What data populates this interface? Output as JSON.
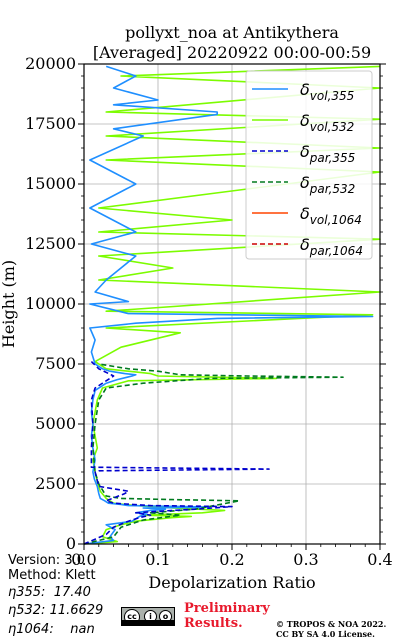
{
  "chart_data": {
    "type": "line",
    "title": "pollyxt_noa at Antikythera",
    "subtitle": "[Averaged] 20220922 00:00-00:59",
    "xlabel": "Depolarization Ratio",
    "ylabel": "Height (m)",
    "xlim": [
      0.0,
      0.4
    ],
    "ylim": [
      0,
      20000
    ],
    "x_ticks": [
      "0.0",
      "0.1",
      "0.2",
      "0.3",
      "0.4"
    ],
    "y_ticks": [
      "0",
      "2500",
      "5000",
      "7500",
      "10000",
      "12500",
      "15000",
      "17500",
      "20000"
    ],
    "grid": true,
    "legend_position": "top-right",
    "series": [
      {
        "name": "δvol,355",
        "legend_main": "δ",
        "legend_sub": "vol,355",
        "color": "#1f8fff",
        "style": "solid",
        "points": [
          [
            0.0,
            0
          ],
          [
            0.04,
            150
          ],
          [
            0.035,
            300
          ],
          [
            0.042,
            600
          ],
          [
            0.03,
            800
          ],
          [
            0.065,
            950
          ],
          [
            0.07,
            1050
          ],
          [
            0.075,
            1150
          ],
          [
            0.085,
            1250
          ],
          [
            0.07,
            1300
          ],
          [
            0.09,
            1400
          ],
          [
            0.11,
            1450
          ],
          [
            0.08,
            1500
          ],
          [
            0.14,
            1520
          ],
          [
            0.17,
            1540
          ],
          [
            0.06,
            1600
          ],
          [
            0.05,
            1650
          ],
          [
            0.033,
            1700
          ],
          [
            0.028,
            1800
          ],
          [
            0.022,
            1900
          ],
          [
            0.02,
            2100
          ],
          [
            0.018,
            2400
          ],
          [
            0.014,
            2700
          ],
          [
            0.012,
            3000
          ],
          [
            0.015,
            3500
          ],
          [
            0.012,
            4000
          ],
          [
            0.01,
            4500
          ],
          [
            0.012,
            5000
          ],
          [
            0.01,
            5500
          ],
          [
            0.012,
            6000
          ],
          [
            0.015,
            6400
          ],
          [
            0.03,
            6700
          ],
          [
            0.045,
            6850
          ],
          [
            0.065,
            7000
          ],
          [
            0.07,
            7050
          ],
          [
            0.055,
            7100
          ],
          [
            0.035,
            7200
          ],
          [
            0.025,
            7300
          ],
          [
            0.015,
            7500
          ],
          [
            0.01,
            8000
          ],
          [
            0.015,
            8500
          ],
          [
            0.008,
            9000
          ],
          [
            0.07,
            9200
          ],
          [
            0.18,
            9400
          ],
          [
            0.39,
            9480
          ],
          [
            0.06,
            9600
          ],
          [
            0.008,
            10000
          ],
          [
            0.06,
            10100
          ],
          [
            0.015,
            10500
          ],
          [
            0.03,
            11000
          ],
          [
            0.07,
            12000
          ],
          [
            0.01,
            12500
          ],
          [
            0.07,
            13000
          ],
          [
            0.008,
            14000
          ],
          [
            0.07,
            15000
          ],
          [
            0.008,
            16000
          ],
          [
            0.08,
            17000
          ],
          [
            0.04,
            17300
          ],
          [
            0.18,
            17900
          ],
          [
            0.18,
            18000
          ],
          [
            0.04,
            18300
          ],
          [
            0.1,
            18500
          ],
          [
            0.04,
            19000
          ],
          [
            0.07,
            19500
          ],
          [
            0.03,
            19900
          ]
        ]
      },
      {
        "name": "δvol,532",
        "legend_main": "δ",
        "legend_sub": "vol,532",
        "color": "#7cfc00",
        "style": "solid",
        "points": [
          [
            0.0,
            0
          ],
          [
            0.045,
            100
          ],
          [
            0.025,
            300
          ],
          [
            0.03,
            600
          ],
          [
            0.05,
            800
          ],
          [
            0.07,
            950
          ],
          [
            0.12,
            1100
          ],
          [
            0.145,
            1150
          ],
          [
            0.08,
            1200
          ],
          [
            0.16,
            1300
          ],
          [
            0.19,
            1400
          ],
          [
            0.12,
            1500
          ],
          [
            0.07,
            1600
          ],
          [
            0.04,
            1700
          ],
          [
            0.03,
            1900
          ],
          [
            0.022,
            2200
          ],
          [
            0.018,
            2600
          ],
          [
            0.015,
            3000
          ],
          [
            0.012,
            3500
          ],
          [
            0.018,
            4000
          ],
          [
            0.015,
            4500
          ],
          [
            0.012,
            5000
          ],
          [
            0.015,
            5500
          ],
          [
            0.018,
            6000
          ],
          [
            0.025,
            6500
          ],
          [
            0.06,
            6800
          ],
          [
            0.26,
            6900
          ],
          [
            0.1,
            7000
          ],
          [
            0.09,
            7100
          ],
          [
            0.06,
            7200
          ],
          [
            0.03,
            7300
          ],
          [
            0.015,
            7600
          ],
          [
            0.05,
            8200
          ],
          [
            0.13,
            8800
          ],
          [
            0.03,
            9000
          ],
          [
            0.39,
            9550
          ],
          [
            0.03,
            9700
          ],
          [
            0.4,
            10500
          ],
          [
            0.02,
            11000
          ],
          [
            0.12,
            11500
          ],
          [
            0.02,
            12000
          ],
          [
            0.4,
            12700
          ],
          [
            0.02,
            13000
          ],
          [
            0.2,
            13500
          ],
          [
            0.02,
            14000
          ],
          [
            0.4,
            15500
          ],
          [
            0.03,
            16000
          ],
          [
            0.4,
            16500
          ],
          [
            0.03,
            17000
          ],
          [
            0.4,
            17700
          ],
          [
            0.03,
            18000
          ],
          [
            0.4,
            19000
          ],
          [
            0.05,
            19500
          ],
          [
            0.4,
            19900
          ]
        ]
      },
      {
        "name": "δpar,355",
        "legend_main": "δ",
        "legend_sub": "par,355",
        "color": "#0000cd",
        "style": "dashed",
        "points": [
          [
            0.0,
            0
          ],
          [
            0.03,
            400
          ],
          [
            0.04,
            700
          ],
          [
            0.06,
            950
          ],
          [
            0.075,
            1100
          ],
          [
            0.09,
            1200
          ],
          [
            0.07,
            1300
          ],
          [
            0.12,
            1400
          ],
          [
            0.15,
            1450
          ],
          [
            0.2,
            1560
          ],
          [
            0.09,
            1600
          ],
          [
            0.04,
            1700
          ],
          [
            0.03,
            1800
          ],
          [
            0.055,
            2100
          ],
          [
            0.06,
            2200
          ],
          [
            0.02,
            2400
          ],
          [
            0.015,
            3000
          ],
          [
            0.02,
            3050
          ],
          [
            0.25,
            3120
          ],
          [
            0.01,
            3200
          ],
          [
            0.01,
            4000
          ],
          [
            0.012,
            5000
          ],
          [
            0.01,
            6000
          ],
          [
            0.015,
            6500
          ],
          [
            0.03,
            6800
          ],
          [
            0.04,
            7000
          ],
          [
            0.02,
            7300
          ],
          [
            0.01,
            7600
          ]
        ]
      },
      {
        "name": "δpar,532",
        "legend_main": "δ",
        "legend_sub": "par,532",
        "color": "#007a1f",
        "style": "dashed",
        "points": [
          [
            0.0,
            0
          ],
          [
            0.04,
            300
          ],
          [
            0.05,
            700
          ],
          [
            0.08,
            1000
          ],
          [
            0.13,
            1200
          ],
          [
            0.09,
            1300
          ],
          [
            0.15,
            1450
          ],
          [
            0.21,
            1800
          ],
          [
            0.12,
            1850
          ],
          [
            0.05,
            1900
          ],
          [
            0.03,
            2000
          ],
          [
            0.02,
            2500
          ],
          [
            0.015,
            3000
          ],
          [
            0.012,
            4000
          ],
          [
            0.015,
            5000
          ],
          [
            0.02,
            6000
          ],
          [
            0.03,
            6500
          ],
          [
            0.08,
            6700
          ],
          [
            0.17,
            6900
          ],
          [
            0.35,
            6950
          ],
          [
            0.22,
            7000
          ],
          [
            0.13,
            7050
          ],
          [
            0.1,
            7200
          ],
          [
            0.06,
            7300
          ],
          [
            0.02,
            7500
          ]
        ]
      },
      {
        "name": "δvol,1064",
        "legend_main": "δ",
        "legend_sub": "vol,1064",
        "color": "#ff4500",
        "style": "solid",
        "points": []
      },
      {
        "name": "δpar,1064",
        "legend_main": "δ",
        "legend_sub": "par,1064",
        "color": "#cc0000",
        "style": "dashed",
        "points": []
      }
    ]
  },
  "info": {
    "version": "Version: 3.0",
    "method": "Method: Klett",
    "eta355": "η355:  17.40",
    "eta532": "η532: 11.6629",
    "eta1064": "η1064:    nan"
  },
  "license_badge": {
    "cc": "cc",
    "by": "i",
    "sa": "o",
    "text": "BY SA"
  },
  "preliminary": "Preliminary\nResults.",
  "copyright": "© TROPOS & NOA 2022.\nCC BY SA 4.0 License."
}
